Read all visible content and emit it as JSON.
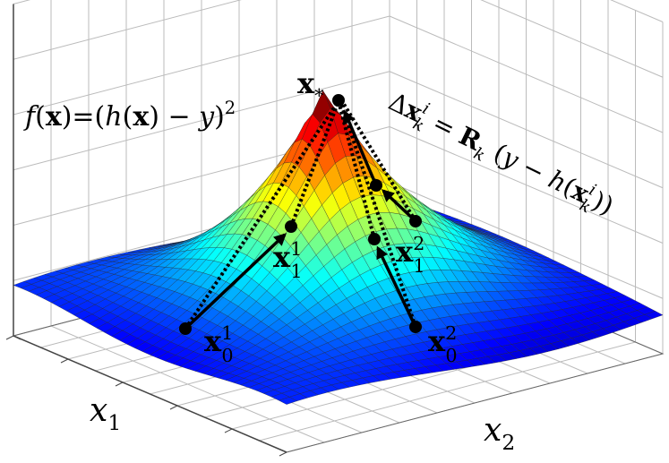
{
  "objective": {
    "parts": [
      "f",
      "(",
      "x",
      ")=(",
      "h",
      "(",
      "x",
      ") − ",
      "y",
      ")",
      "2"
    ]
  },
  "update": {
    "parts": [
      "Δ",
      "x",
      "i",
      "k",
      " = ",
      "R",
      "k",
      " (",
      "y",
      " − ",
      "h",
      "(",
      "x",
      "i",
      "k",
      "))"
    ]
  },
  "points": {
    "optimum": {
      "base": "x",
      "sub": "*"
    },
    "p01": {
      "base": "x",
      "sub": "0",
      "sup": "1"
    },
    "p11": {
      "base": "x",
      "sub": "1",
      "sup": "1"
    },
    "p02": {
      "base": "x",
      "sub": "0",
      "sup": "2"
    },
    "p12": {
      "base": "x",
      "sub": "1",
      "sup": "2"
    }
  },
  "axes": {
    "x1": {
      "base": "x",
      "sub": "1"
    },
    "x2": {
      "base": "x",
      "sub": "2"
    }
  }
}
